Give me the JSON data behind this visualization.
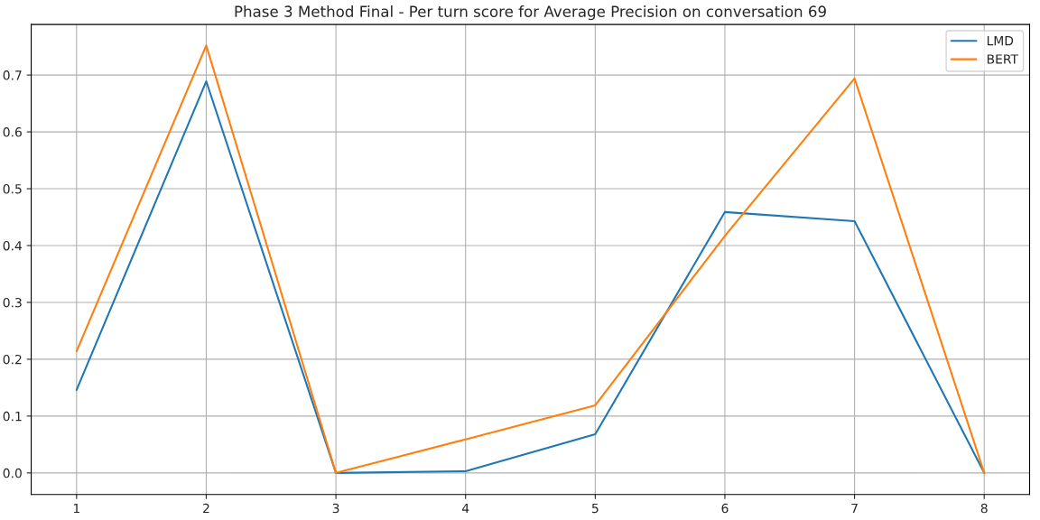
{
  "chart_data": {
    "type": "line",
    "title": "Phase 3 Method Final - Per turn score for Average Precision on conversation 69",
    "x": [
      1,
      2,
      3,
      4,
      5,
      6,
      7,
      8
    ],
    "series": [
      {
        "name": "LMD",
        "color": "#1f77b4",
        "values": [
          0.146,
          0.689,
          0.0,
          0.003,
          0.068,
          0.459,
          0.443,
          0.0
        ]
      },
      {
        "name": "BERT",
        "color": "#ff7f0e",
        "values": [
          0.214,
          0.752,
          0.0,
          0.059,
          0.119,
          0.417,
          0.694,
          0.0
        ]
      }
    ],
    "xlim": [
      0.65,
      8.35
    ],
    "xticks": [
      1,
      2,
      3,
      4,
      5,
      6,
      7,
      8
    ],
    "ylim": [
      -0.038,
      0.789
    ],
    "yticks": [
      {
        "value": 0,
        "label": "0.0"
      },
      0.1,
      0.2,
      0.3,
      0.4,
      0.5,
      0.6,
      0.7
    ],
    "grid": true,
    "legend": "top right",
    "marker": "none",
    "line_style": "solid"
  }
}
